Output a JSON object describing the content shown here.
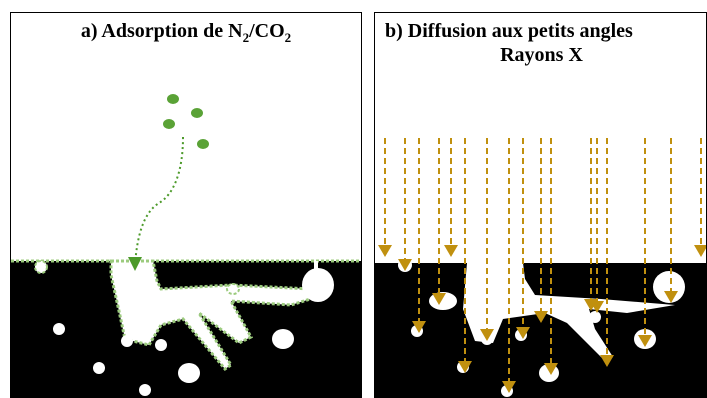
{
  "panel_a": {
    "title_prefix": "a) Adsorption  de  N",
    "title_sub1": "2",
    "title_mid": "/CO",
    "title_sub2": "2",
    "colors": {
      "gas": "#5aa236",
      "arrow": "#4c9a2a",
      "coating": "#9ccb7e",
      "solid": "#000000",
      "pore": "#ffffff"
    }
  },
  "panel_b": {
    "title_line1": "b) Diffusion aux petits angles",
    "title_line2": "Rayons  X",
    "colors": {
      "ray": "#c0900f",
      "solid": "#000000",
      "pore": "#ffffff"
    }
  }
}
